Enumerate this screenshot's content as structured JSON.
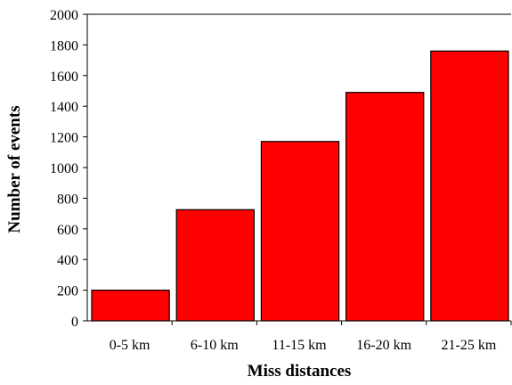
{
  "chart_data": {
    "type": "bar",
    "title": "",
    "xlabel": "Miss distances",
    "ylabel": "Number of events",
    "categories": [
      "0-5 km",
      "6-10 km",
      "11-15 km",
      "16-20 km",
      "21-25 km"
    ],
    "values": [
      200,
      725,
      1170,
      1490,
      1760
    ],
    "ylim": [
      0,
      2000
    ],
    "yticks": [
      0,
      200,
      400,
      600,
      800,
      1000,
      1200,
      1400,
      1600,
      1800,
      2000
    ],
    "grid": false,
    "legend": "none",
    "bar_color": "#ff0000",
    "bar_edge_color": "#000000"
  }
}
